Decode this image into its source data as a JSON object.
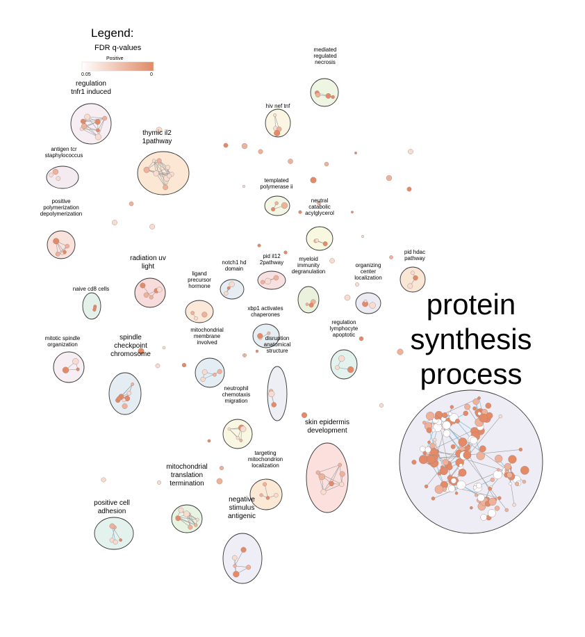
{
  "legend": {
    "title": "Legend:",
    "subtitle": "FDR q-values",
    "sublabel": "Positive",
    "tick_left": "0.05",
    "tick_right": "0",
    "color_low": "#ffffff",
    "color_high": "#e08a65"
  },
  "colors": {
    "node_strong": "#e58a66",
    "node_mid": "#eeb19a",
    "node_light": "#f7dccf",
    "edge": "#9a9a9a",
    "edge_blue": "#8fc3da"
  },
  "clusters": [
    {
      "id": "mediated-regulated-necrosis",
      "label": [
        "mediated",
        "regulated",
        "necrosis"
      ],
      "fill": "#eef5e3"
    },
    {
      "id": "regulation-tnfr1-induced",
      "label": [
        "regulation",
        "tnfr1 induced"
      ],
      "fill": "#f7eef3"
    },
    {
      "id": "hiv-nef-tnf",
      "label": [
        "hiv nef tnf"
      ],
      "fill": "#fbf6e3"
    },
    {
      "id": "thymic-il2-1pathway",
      "label": [
        "thymic il2",
        "1pathway"
      ],
      "fill": "#fbe7d4"
    },
    {
      "id": "antigen-tcr-staphylococcus",
      "label": [
        "antigen tcr",
        "staphylococcus"
      ],
      "fill": "#f3ebf0"
    },
    {
      "id": "templated-polymerase-ii",
      "label": [
        "templated",
        "polymerase ii"
      ],
      "fill": "#f2f6e2"
    },
    {
      "id": "positive-polymerization-depolymerization",
      "label": [
        "positive",
        "polymerization",
        "depolymerization"
      ],
      "fill": "#f9e2dc"
    },
    {
      "id": "neutral-catabolic-acylglycerol",
      "label": [
        "neutral",
        "catabolic",
        "acylglycerol"
      ],
      "fill": "#f8f8e1"
    },
    {
      "id": "radiation-uv-light",
      "label": [
        "radiation uv",
        "light"
      ],
      "fill": "#f8dcdc"
    },
    {
      "id": "notch1-hd-domain",
      "label": [
        "notch1 hd",
        "domain"
      ],
      "fill": "#e6eef3"
    },
    {
      "id": "pid-il12-2pathway",
      "label": [
        "pid il12",
        "2pathway"
      ],
      "fill": "#f8dfe0"
    },
    {
      "id": "myeloid-immunity-degranulation",
      "label": [
        "myeloid",
        "immunity",
        "degranulation"
      ],
      "fill": "#eaf2dd"
    },
    {
      "id": "organizing-center-localization",
      "label": [
        "organizing",
        "center",
        "localization"
      ],
      "fill": "#ecebf4"
    },
    {
      "id": "pid-hdac-pathway",
      "label": [
        "pid hdac",
        "pathway"
      ],
      "fill": "#fae6d5"
    },
    {
      "id": "naive-cd8-cells",
      "label": [
        "naive cd8 cells"
      ],
      "fill": "#e4f0ea"
    },
    {
      "id": "ligand-precursor-hormone",
      "label": [
        "ligand",
        "precursor",
        "hormone"
      ],
      "fill": "#fbe8d8"
    },
    {
      "id": "xbp1-activates-chaperones",
      "label": [
        "xbp1 activates",
        "chaperones"
      ],
      "fill": "#e6eef3"
    },
    {
      "id": "protein-synthesis-process",
      "label": [
        "protein",
        "synthesis",
        "process"
      ],
      "fill": "#eeedf5"
    },
    {
      "id": "mitotic-spindle-organization",
      "label": [
        "mitotic spindle",
        "organization"
      ],
      "fill": "#f7eef3"
    },
    {
      "id": "spindle-checkpoint-chromosome",
      "label": [
        "spindle",
        "checkpoint",
        "chromosome"
      ],
      "fill": "#e5edf3"
    },
    {
      "id": "mitochondrial-membrane-involved",
      "label": [
        "mitochondrial",
        "membrane",
        "involved"
      ],
      "fill": "#e4edf3"
    },
    {
      "id": "disruption-anatomical-structure",
      "label": [
        "disruption",
        "anatomical",
        "structure"
      ],
      "fill": "#eeeef5"
    },
    {
      "id": "regulation-lymphocyte-apoptotic",
      "label": [
        "regulation",
        "lymphocyte",
        "apoptotic"
      ],
      "fill": "#e4f2ee"
    },
    {
      "id": "neutrophil-chemotaxis-migration",
      "label": [
        "neutrophil",
        "chemotaxis",
        "migration"
      ],
      "fill": "#f9f6e2"
    },
    {
      "id": "skin-epidermis-development",
      "label": [
        "skin epidermis",
        "development"
      ],
      "fill": "#fbe0dd"
    },
    {
      "id": "targeting-mitochondrion-localization",
      "label": [
        "targeting",
        "mitochondrion",
        "localization"
      ],
      "fill": "#fbe8d5"
    },
    {
      "id": "mitochondrial-translation-termination",
      "label": [
        "mitochondrial",
        "translation",
        "termination"
      ],
      "fill": "#e8f3e1"
    },
    {
      "id": "positive-cell-adhesion",
      "label": [
        "positive cell",
        "adhesion"
      ],
      "fill": "#e4f2ee"
    },
    {
      "id": "negative-stimulus-antigenic",
      "label": [
        "negative",
        "stimulus",
        "antigenic"
      ],
      "fill": "#efedf5"
    }
  ]
}
